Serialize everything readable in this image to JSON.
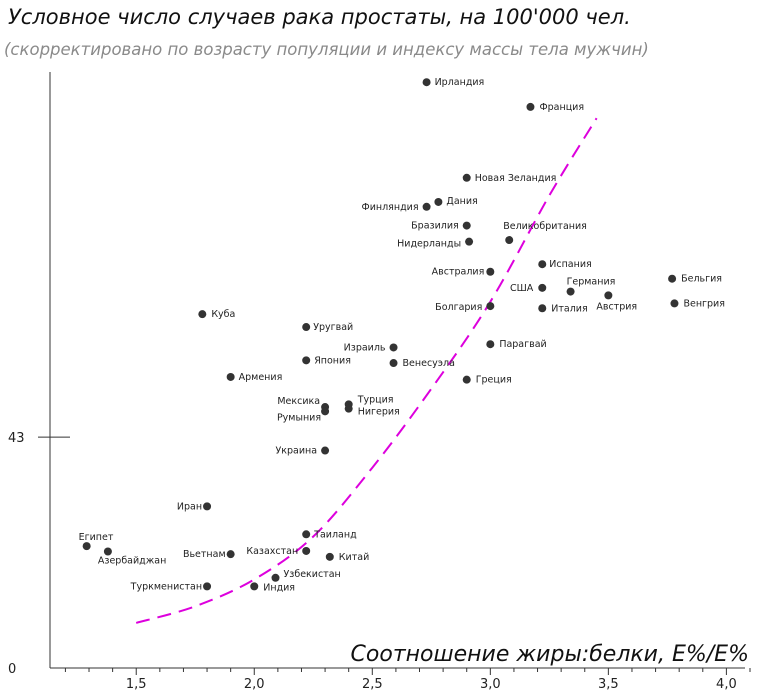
{
  "chart_data": {
    "type": "scatter",
    "title": "Условное число случаев рака простаты, на 100'000 чел.",
    "subtitle": "(скорректировано по возрасту популяции и индексу массы тела мужчин)",
    "xlabel": "Соотношение жиры:белки, E%/E%",
    "ylabel": "",
    "xlim": [
      1.05,
      4.1
    ],
    "ylim": [
      0,
      111
    ],
    "x_ticks": [
      "1,5",
      "2,0",
      "2,5",
      "3,0",
      "3,5",
      "4,0"
    ],
    "x_tick_values": [
      1.5,
      2.0,
      2.5,
      3.0,
      3.5,
      4.0
    ],
    "x_minor_step": 0.1,
    "y_ticks": [
      "0",
      "43"
    ],
    "y_tick_values": [
      0,
      43
    ],
    "trend_color": "#dd00dd",
    "point_color": "#333333",
    "trend": {
      "x": [
        1.5,
        1.75,
        2.0,
        2.25,
        2.5,
        2.75,
        3.0,
        3.25,
        3.45
      ],
      "y": [
        8.4,
        11.5,
        16.5,
        24.5,
        37.3,
        52.0,
        68.2,
        88.0,
        102.4
      ]
    },
    "points": [
      {
        "label": "Ирландия",
        "x": 2.73,
        "y": 109.1
      },
      {
        "label": "Франция",
        "x": 3.17,
        "y": 104.5
      },
      {
        "label": "Новая  Зеландия",
        "x": 2.9,
        "y": 91.3
      },
      {
        "label": "Дания",
        "x": 2.78,
        "y": 86.8
      },
      {
        "label": "Финляндия",
        "x": 2.73,
        "y": 85.9
      },
      {
        "label": "Бразилия",
        "x": 2.9,
        "y": 82.4
      },
      {
        "label": "Великобритания",
        "x": 3.08,
        "y": 79.7
      },
      {
        "label": "Нидерланды",
        "x": 2.91,
        "y": 79.4
      },
      {
        "label": "Испания",
        "x": 3.22,
        "y": 75.2
      },
      {
        "label": "Австралия",
        "x": 3.0,
        "y": 73.8
      },
      {
        "label": "Бельгия",
        "x": 3.77,
        "y": 72.5
      },
      {
        "label": "Германия",
        "x": 3.34,
        "y": 70.1
      },
      {
        "label": "США",
        "x": 3.22,
        "y": 70.8
      },
      {
        "label": "Австрия",
        "x": 3.5,
        "y": 69.4
      },
      {
        "label": "Венгрия",
        "x": 3.78,
        "y": 67.9
      },
      {
        "label": "Болгария",
        "x": 3.0,
        "y": 67.4
      },
      {
        "label": "Италия",
        "x": 3.22,
        "y": 67.0
      },
      {
        "label": "Куба",
        "x": 1.78,
        "y": 65.9
      },
      {
        "label": "Уругвай",
        "x": 2.22,
        "y": 63.5
      },
      {
        "label": "Парагвай",
        "x": 3.0,
        "y": 60.3
      },
      {
        "label": "Израиль",
        "x": 2.59,
        "y": 59.7
      },
      {
        "label": "Япония",
        "x": 2.22,
        "y": 57.3
      },
      {
        "label": "Венесуэла",
        "x": 2.59,
        "y": 56.8
      },
      {
        "label": "Армения",
        "x": 1.9,
        "y": 54.2
      },
      {
        "label": "Греция",
        "x": 2.9,
        "y": 53.7
      },
      {
        "label": "Мексика",
        "x": 2.3,
        "y": 48.6
      },
      {
        "label": "Турция",
        "x": 2.4,
        "y": 49.1
      },
      {
        "label": "Нигерия",
        "x": 2.4,
        "y": 48.3
      },
      {
        "label": "Румыния",
        "x": 2.3,
        "y": 47.8
      },
      {
        "label": "Украина",
        "x": 2.3,
        "y": 40.5
      },
      {
        "label": "Иран",
        "x": 1.8,
        "y": 30.1
      },
      {
        "label": "Таиланд",
        "x": 2.22,
        "y": 24.9
      },
      {
        "label": "Египет",
        "x": 1.29,
        "y": 22.7
      },
      {
        "label": "Азербайджан",
        "x": 1.38,
        "y": 21.7
      },
      {
        "label": "Вьетнам",
        "x": 1.9,
        "y": 21.2
      },
      {
        "label": "Казахстан",
        "x": 2.22,
        "y": 21.8
      },
      {
        "label": "Китай",
        "x": 2.32,
        "y": 20.7
      },
      {
        "label": "Узбекистан",
        "x": 2.09,
        "y": 16.8
      },
      {
        "label": "Туркменистан",
        "x": 1.8,
        "y": 15.2
      },
      {
        "label": "Индия",
        "x": 2.0,
        "y": 15.2
      }
    ]
  }
}
